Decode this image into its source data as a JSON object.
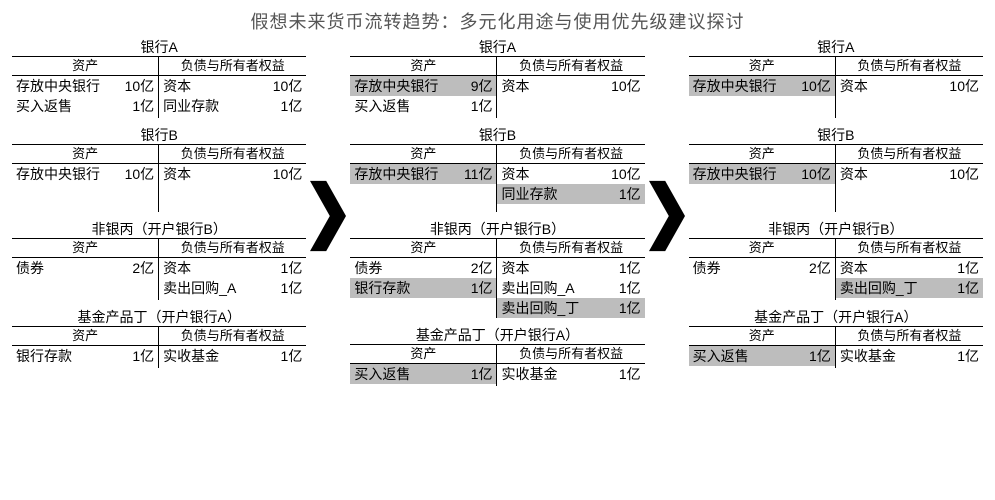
{
  "title": "假想未来货币流转趋势：多元化用途与使用优先级建议探讨",
  "headers": {
    "assets": "资产",
    "liab": "负债与所有者权益"
  },
  "colors": {
    "highlight": "#bdbdbd",
    "arrow": "#000000",
    "border": "#000000",
    "bg": "#ffffff"
  },
  "columns": [
    {
      "entities": [
        {
          "name": "银行A",
          "minBodyHeight": 62,
          "assets": [
            {
              "label": "存放中央银行",
              "value": "10亿",
              "hl": false
            },
            {
              "label": "买入返售",
              "value": "1亿",
              "hl": false
            }
          ],
          "liab": [
            {
              "label": "资本",
              "value": "10亿",
              "hl": false
            },
            {
              "label": "同业存款",
              "value": "1亿",
              "hl": false
            }
          ]
        },
        {
          "name": "银行B",
          "minBodyHeight": 68,
          "assets": [
            {
              "label": "存放中央银行",
              "value": "10亿",
              "hl": false
            }
          ],
          "liab": [
            {
              "label": "资本",
              "value": "10亿",
              "hl": false
            }
          ]
        },
        {
          "name": "非银丙（开户银行B）",
          "minBodyHeight": 62,
          "assets": [
            {
              "label": "债券",
              "value": "2亿",
              "hl": false
            }
          ],
          "liab": [
            {
              "label": "资本",
              "value": "1亿",
              "hl": false
            },
            {
              "label": "卖出回购_A",
              "value": "1亿",
              "hl": false
            }
          ]
        },
        {
          "name": "基金产品丁（开户银行A）",
          "minBodyHeight": 42,
          "assets": [
            {
              "label": "银行存款",
              "value": "1亿",
              "hl": false
            }
          ],
          "liab": [
            {
              "label": "实收基金",
              "value": "1亿",
              "hl": false
            }
          ]
        }
      ]
    },
    {
      "entities": [
        {
          "name": "银行A",
          "minBodyHeight": 62,
          "assets": [
            {
              "label": "存放中央银行",
              "value": "9亿",
              "hl": true
            },
            {
              "label": "买入返售",
              "value": "1亿",
              "hl": false
            }
          ],
          "liab": [
            {
              "label": "资本",
              "value": "10亿",
              "hl": false
            }
          ]
        },
        {
          "name": "银行B",
          "minBodyHeight": 68,
          "assets": [
            {
              "label": "存放中央银行",
              "value": "11亿",
              "hl": true
            }
          ],
          "liab": [
            {
              "label": "资本",
              "value": "10亿",
              "hl": false
            },
            {
              "label": "同业存款",
              "value": "1亿",
              "hl": true
            }
          ]
        },
        {
          "name": "非银丙（开户银行B）",
          "minBodyHeight": 62,
          "assets": [
            {
              "label": "债券",
              "value": "2亿",
              "hl": false
            },
            {
              "label": "银行存款",
              "value": "1亿",
              "hl": true
            }
          ],
          "liab": [
            {
              "label": "资本",
              "value": "1亿",
              "hl": false
            },
            {
              "label": "卖出回购_A",
              "value": "1亿",
              "hl": false
            },
            {
              "label": "卖出回购_丁",
              "value": "1亿",
              "hl": true
            }
          ]
        },
        {
          "name": "基金产品丁（开户银行A）",
          "minBodyHeight": 42,
          "assets": [
            {
              "label": "买入返售",
              "value": "1亿",
              "hl": true
            }
          ],
          "liab": [
            {
              "label": "实收基金",
              "value": "1亿",
              "hl": false
            }
          ]
        }
      ]
    },
    {
      "entities": [
        {
          "name": "银行A",
          "minBodyHeight": 62,
          "assets": [
            {
              "label": "存放中央银行",
              "value": "10亿",
              "hl": true
            }
          ],
          "liab": [
            {
              "label": "资本",
              "value": "10亿",
              "hl": false
            }
          ]
        },
        {
          "name": "银行B",
          "minBodyHeight": 68,
          "assets": [
            {
              "label": "存放中央银行",
              "value": "10亿",
              "hl": true
            }
          ],
          "liab": [
            {
              "label": "资本",
              "value": "10亿",
              "hl": false
            }
          ]
        },
        {
          "name": "非银丙（开户银行B）",
          "minBodyHeight": 62,
          "assets": [
            {
              "label": "债券",
              "value": "2亿",
              "hl": false
            }
          ],
          "liab": [
            {
              "label": "资本",
              "value": "1亿",
              "hl": false
            },
            {
              "label": "卖出回购_丁",
              "value": "1亿",
              "hl": true
            }
          ]
        },
        {
          "name": "基金产品丁（开户银行A）",
          "minBodyHeight": 42,
          "assets": [
            {
              "label": "买入返售",
              "value": "1亿",
              "hl": true
            }
          ],
          "liab": [
            {
              "label": "实收基金",
              "value": "1亿",
              "hl": false
            }
          ]
        }
      ]
    }
  ]
}
